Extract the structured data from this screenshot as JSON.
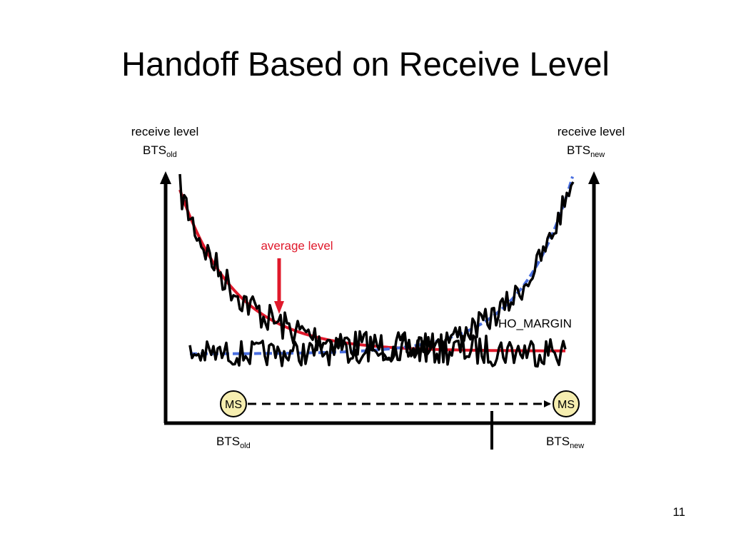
{
  "title": "Handoff Based on Receive Level",
  "slide_number": "11",
  "diagram": {
    "left_axis": {
      "label": "receive level",
      "station": "BTS",
      "subscript": "old"
    },
    "right_axis": {
      "label": "receive level",
      "station": "BTS",
      "subscript": "new"
    },
    "average_label": "average level",
    "margin_label": "HO_MARGIN",
    "ms_label": "MS",
    "bottom_left": {
      "station": "BTS",
      "subscript": "old"
    },
    "bottom_right": {
      "station": "BTS",
      "subscript": "new"
    },
    "colors": {
      "average_curve": "#e0192b",
      "new_curve": "#4a6fe0",
      "signal": "#000000",
      "ms_fill": "#f6eeb0"
    }
  }
}
